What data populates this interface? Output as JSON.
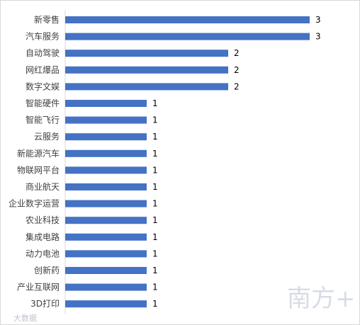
{
  "chart_data": {
    "type": "bar",
    "orientation": "horizontal",
    "categories": [
      "新零售",
      "汽车服务",
      "自动驾驶",
      "网红爆品",
      "数字文娱",
      "智能硬件",
      "智能飞行",
      "云服务",
      "新能源汽车",
      "物联网平台",
      "商业航天",
      "企业数字运营",
      "农业科技",
      "集成电路",
      "动力电池",
      "创新药",
      "产业互联网",
      "3D打印"
    ],
    "values": [
      3,
      3,
      2,
      2,
      2,
      1,
      1,
      1,
      1,
      1,
      1,
      1,
      1,
      1,
      1,
      1,
      1,
      1
    ],
    "xlim": [
      0,
      3
    ],
    "title": "",
    "xlabel": "",
    "ylabel": "",
    "grid": false,
    "legend": "none",
    "data_labels": true,
    "bar_color": "#4472C4"
  },
  "watermark": {
    "logo_text": "南方+",
    "source_text": "大数据"
  }
}
